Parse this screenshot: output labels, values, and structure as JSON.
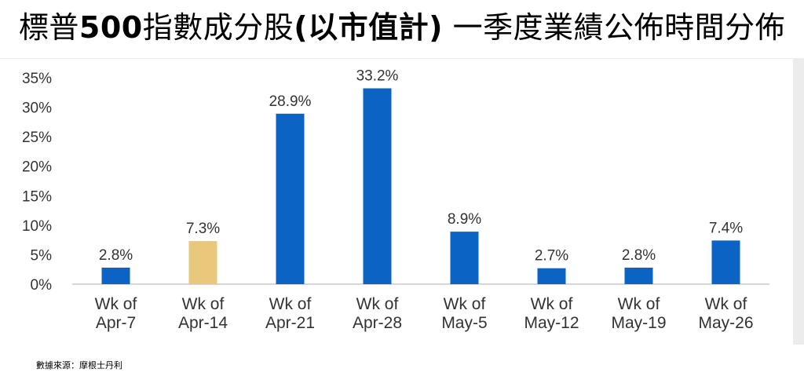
{
  "title": {
    "before": "標普",
    "highlight": "500",
    "middle": "指數成分股",
    "paren": "(以市值計)",
    "after": " 一季度業績公佈時間分佈"
  },
  "source": "數據來源：摩根士丹利",
  "colors": {
    "primary": "#0b63c4",
    "highlight": "#e8c97c",
    "axis": "#c8c8c8",
    "text": "#333333"
  },
  "chart_data": {
    "type": "bar",
    "categories": [
      [
        "Wk of",
        "Apr-7"
      ],
      [
        "Wk of",
        "Apr-14"
      ],
      [
        "Wk of",
        "Apr-21"
      ],
      [
        "Wk of",
        "Apr-28"
      ],
      [
        "Wk of",
        "May-5"
      ],
      [
        "Wk of",
        "May-12"
      ],
      [
        "Wk of",
        "May-19"
      ],
      [
        "Wk of",
        "May-26"
      ]
    ],
    "values": [
      2.8,
      7.3,
      28.9,
      33.2,
      8.9,
      2.7,
      2.8,
      7.4
    ],
    "data_labels": [
      "2.8%",
      "7.3%",
      "28.9%",
      "33.2%",
      "8.9%",
      "2.7%",
      "2.8%",
      "7.4%"
    ],
    "highlight_index": 1,
    "yticks": [
      0,
      5,
      10,
      15,
      20,
      25,
      30,
      35
    ],
    "ytick_labels": [
      "0%",
      "5%",
      "10%",
      "15%",
      "20%",
      "25%",
      "30%",
      "35%"
    ],
    "ylim": [
      0,
      35
    ],
    "grid": false,
    "title": "",
    "xlabel": "",
    "ylabel": ""
  }
}
